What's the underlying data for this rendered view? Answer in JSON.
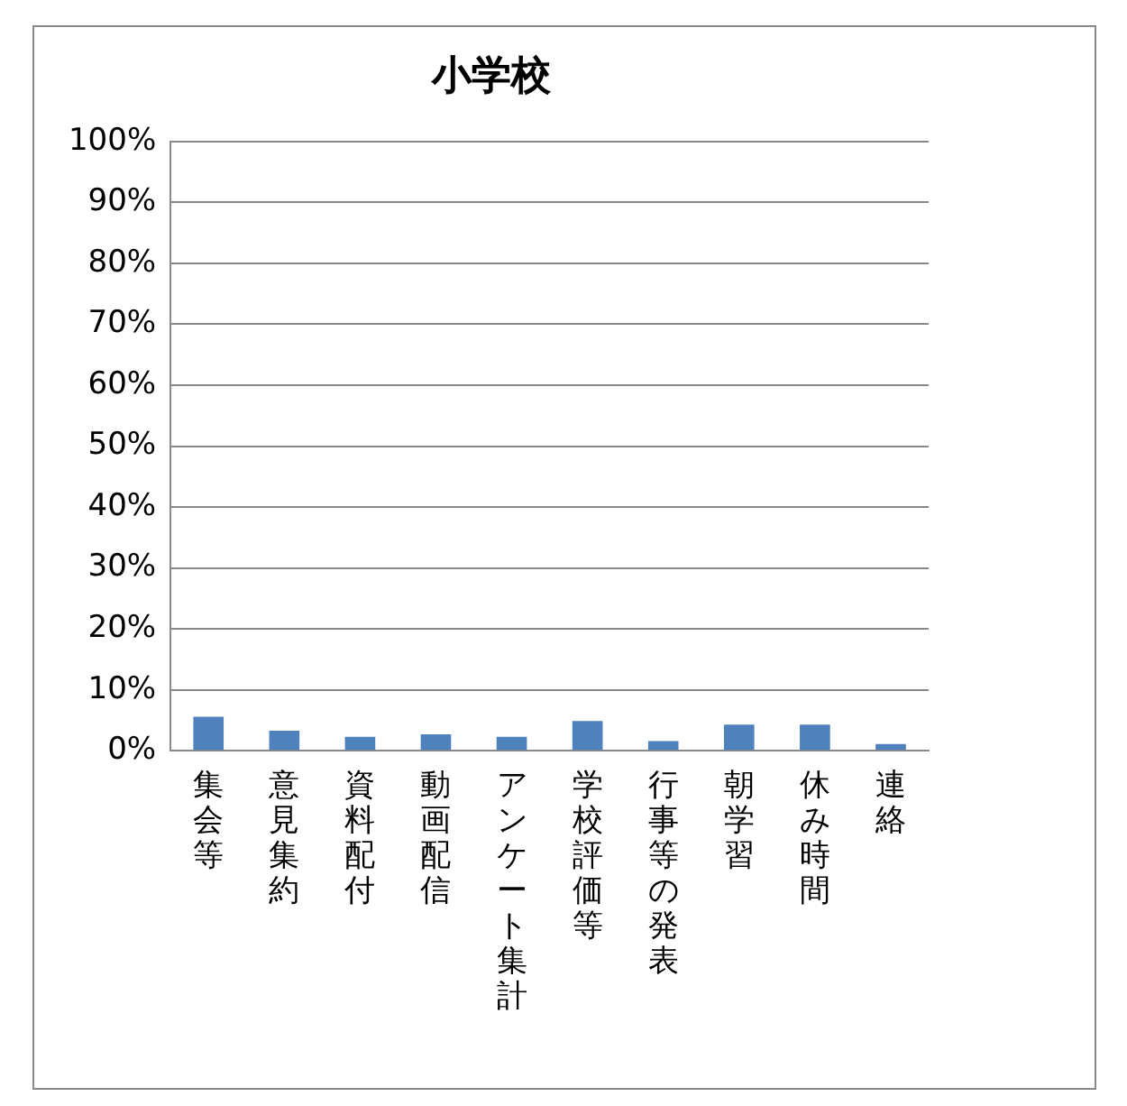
{
  "chart_data": {
    "type": "bar",
    "title": "小学校",
    "categories": [
      "集会等",
      "意見集約",
      "資料配付",
      "動画配信",
      "アンケート集計",
      "学校評価等",
      "行事等の発表",
      "朝学習",
      "休み時間",
      "連絡"
    ],
    "values": [
      5.6,
      3.3,
      2.3,
      2.7,
      2.3,
      4.9,
      1.6,
      4.3,
      4.3,
      1.1
    ],
    "color": "#4f81bd",
    "ylim": [
      0,
      100
    ],
    "yticks": [
      {
        "value": 0,
        "label": "0%"
      },
      {
        "value": 10,
        "label": "10%"
      },
      {
        "value": 20,
        "label": "20%"
      },
      {
        "value": 30,
        "label": "30%"
      },
      {
        "value": 40,
        "label": "40%"
      },
      {
        "value": 50,
        "label": "50%"
      },
      {
        "value": 60,
        "label": "60%"
      },
      {
        "value": 70,
        "label": "70%"
      },
      {
        "value": 80,
        "label": "80%"
      },
      {
        "value": 90,
        "label": "90%"
      },
      {
        "value": 100,
        "label": "100%"
      }
    ],
    "grid": "y",
    "legend": false
  }
}
